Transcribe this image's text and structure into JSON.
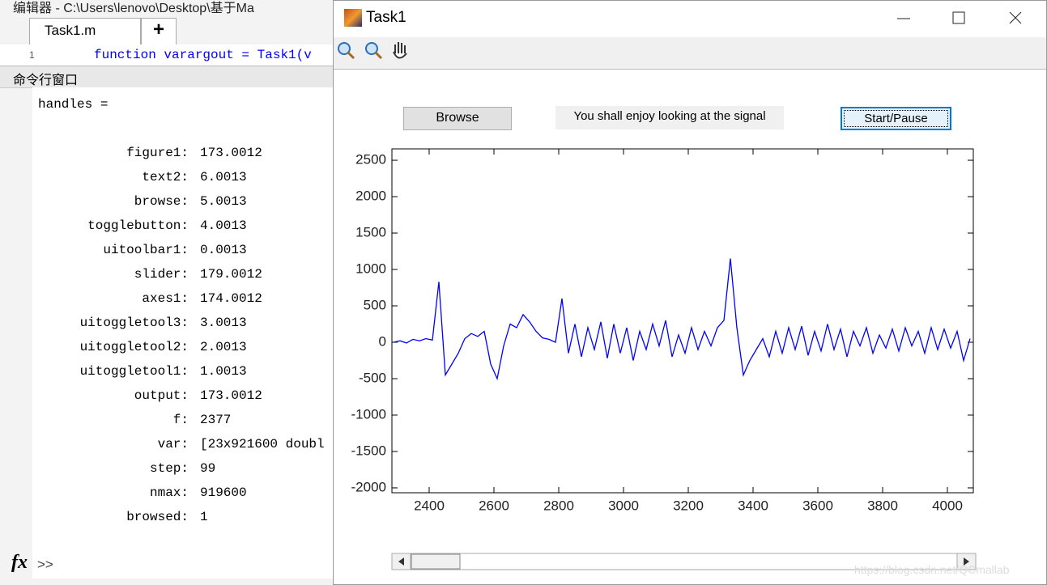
{
  "editor": {
    "title": "编辑器 - C:\\Users\\lenovo\\Desktop\\基于Ma",
    "tab": "Task1.m",
    "new_tab": "+",
    "line_number": "1",
    "code_line": "function varargout = Task1(v"
  },
  "command_window": {
    "title": "命令行窗口",
    "output_header": "handles =",
    "fields": [
      {
        "name": "figure1:",
        "value": "173.0012"
      },
      {
        "name": "text2:",
        "value": "6.0013"
      },
      {
        "name": "browse:",
        "value": "5.0013"
      },
      {
        "name": "togglebutton:",
        "value": "4.0013"
      },
      {
        "name": "uitoolbar1:",
        "value": "0.0013"
      },
      {
        "name": "slider:",
        "value": "179.0012"
      },
      {
        "name": "axes1:",
        "value": "174.0012"
      },
      {
        "name": "uitoggletool3:",
        "value": "3.0013"
      },
      {
        "name": "uitoggletool2:",
        "value": "2.0013"
      },
      {
        "name": "uitoggletool1:",
        "value": "1.0013"
      },
      {
        "name": "output:",
        "value": "173.0012"
      },
      {
        "name": "f:",
        "value": "2377"
      },
      {
        "name": "var:",
        "value": "[23x921600 doubl"
      },
      {
        "name": "step:",
        "value": "99"
      },
      {
        "name": "nmax:",
        "value": "919600"
      },
      {
        "name": "browsed:",
        "value": "1"
      }
    ],
    "fx": "fx",
    "prompt": ">>"
  },
  "figure": {
    "title": "Task1",
    "browse_button": "Browse",
    "text": "You shall enjoy looking at the signal",
    "toggle_button": "Start/Pause",
    "chart_data": {
      "type": "line",
      "color": "#0000ff",
      "x": [
        2290,
        2310,
        2330,
        2350,
        2370,
        2390,
        2410,
        2430,
        2450,
        2470,
        2490,
        2510,
        2530,
        2550,
        2570,
        2590,
        2610,
        2630,
        2650,
        2670,
        2690,
        2710,
        2730,
        2750,
        2770,
        2790,
        2810,
        2830,
        2850,
        2870,
        2890,
        2910,
        2930,
        2950,
        2970,
        2990,
        3010,
        3030,
        3050,
        3070,
        3090,
        3110,
        3130,
        3150,
        3170,
        3190,
        3210,
        3230,
        3250,
        3270,
        3290,
        3310,
        3330,
        3350,
        3370,
        3390,
        3410,
        3430,
        3450,
        3470,
        3490,
        3510,
        3530,
        3550,
        3570,
        3590,
        3610,
        3630,
        3650,
        3670,
        3690,
        3710,
        3730,
        3750,
        3770,
        3790,
        3810,
        3830,
        3850,
        3870,
        3890,
        3910,
        3930,
        3950,
        3970,
        3990,
        4010,
        4030,
        4050,
        4070
      ],
      "values": [
        0,
        20,
        -10,
        40,
        20,
        50,
        30,
        830,
        -450,
        -300,
        -150,
        50,
        120,
        80,
        150,
        -300,
        -500,
        -50,
        250,
        200,
        380,
        280,
        150,
        60,
        40,
        0,
        600,
        -150,
        250,
        -200,
        200,
        -100,
        280,
        -220,
        250,
        -150,
        200,
        -250,
        150,
        -100,
        250,
        -50,
        300,
        -200,
        100,
        -150,
        200,
        -100,
        150,
        -50,
        200,
        300,
        1150,
        200,
        -450,
        -250,
        -100,
        50,
        -200,
        150,
        -150,
        200,
        -100,
        220,
        -180,
        150,
        -120,
        250,
        -100,
        180,
        -200,
        150,
        -50,
        200,
        -150,
        100,
        -80,
        180,
        -120,
        200,
        -50,
        150,
        -150,
        200,
        -100,
        180,
        -80,
        150,
        -250,
        50
      ],
      "xlim": [
        2285,
        4080
      ],
      "ylim": [
        -2067,
        2656
      ],
      "xticks": [
        2400,
        2600,
        2800,
        3000,
        3200,
        3400,
        3600,
        3800,
        4000
      ],
      "yticks": [
        -2000,
        -1500,
        -1000,
        -500,
        0,
        500,
        1000,
        1500,
        2000,
        2500
      ]
    }
  },
  "watermark": "https://blog.csdn.net/QCmallab"
}
